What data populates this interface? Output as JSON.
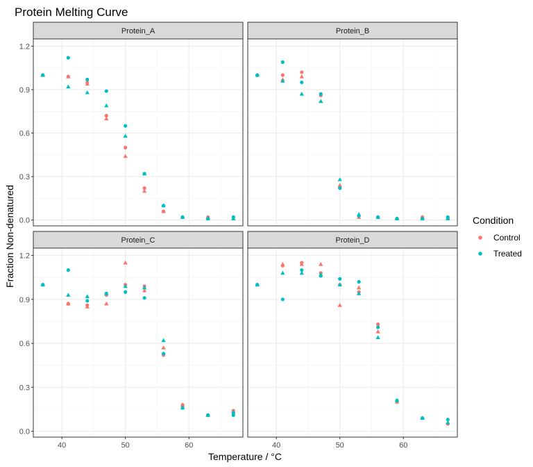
{
  "chart_data": {
    "type": "scatter",
    "title": "Protein Melting Curve",
    "xlabel": "Temperature / °C",
    "ylabel": "Fraction Non-denatured",
    "xlim": [
      35.5,
      68.5
    ],
    "ylim": [
      -0.04,
      1.25
    ],
    "x_ticks": [
      40,
      50,
      60
    ],
    "y_ticks": [
      0.0,
      0.3,
      0.6,
      0.9,
      1.2
    ],
    "y_tick_labels": [
      "0.0",
      "0.3",
      "0.6",
      "0.9",
      "1.2"
    ],
    "grid": true,
    "facet_by": "Protein",
    "legend": {
      "title": "Condition",
      "position": "right",
      "entries": [
        {
          "name": "Control",
          "color": "#F8766D"
        },
        {
          "name": "Treated",
          "color": "#00BFC4"
        }
      ]
    },
    "shapes": [
      "circle",
      "triangle"
    ],
    "panels": [
      {
        "name": "Protein_A",
        "series": [
          {
            "condition": "Control",
            "shape": "circle",
            "x": [
              37,
              41,
              44,
              47,
              50,
              53,
              56,
              59,
              63,
              67
            ],
            "y": [
              1.0,
              0.99,
              0.95,
              0.72,
              0.5,
              0.22,
              0.06,
              0.02,
              0.02,
              0.02
            ]
          },
          {
            "condition": "Control",
            "shape": "triangle",
            "x": [
              37,
              41,
              44,
              47,
              50,
              53,
              56,
              59,
              63,
              67
            ],
            "y": [
              1.0,
              0.99,
              0.94,
              0.7,
              0.44,
              0.2,
              0.06,
              0.02,
              0.02,
              0.01
            ]
          },
          {
            "condition": "Treated",
            "shape": "circle",
            "x": [
              37,
              41,
              44,
              47,
              50,
              53,
              56,
              59,
              63,
              67
            ],
            "y": [
              1.0,
              1.12,
              0.97,
              0.89,
              0.65,
              0.32,
              0.1,
              0.02,
              0.01,
              0.02
            ]
          },
          {
            "condition": "Treated",
            "shape": "triangle",
            "x": [
              37,
              41,
              44,
              47,
              50,
              53,
              56,
              59,
              63,
              67
            ],
            "y": [
              1.0,
              0.92,
              0.88,
              0.79,
              0.58,
              0.32,
              0.1,
              0.02,
              0.01,
              0.01
            ]
          }
        ]
      },
      {
        "name": "Protein_B",
        "series": [
          {
            "condition": "Control",
            "shape": "circle",
            "x": [
              37,
              41,
              44,
              47,
              50,
              53,
              56,
              59,
              63,
              67
            ],
            "y": [
              1.0,
              1.0,
              1.02,
              0.86,
              0.23,
              0.03,
              0.02,
              0.01,
              0.02,
              0.01
            ]
          },
          {
            "condition": "Control",
            "shape": "triangle",
            "x": [
              37,
              41,
              44,
              47,
              50,
              53,
              56,
              59,
              63,
              67
            ],
            "y": [
              1.0,
              0.97,
              0.99,
              0.82,
              0.24,
              0.02,
              0.02,
              0.01,
              0.02,
              0.01
            ]
          },
          {
            "condition": "Treated",
            "shape": "circle",
            "x": [
              37,
              41,
              44,
              47,
              50,
              53,
              56,
              59,
              63,
              67
            ],
            "y": [
              1.0,
              1.09,
              0.95,
              0.87,
              0.22,
              0.03,
              0.02,
              0.01,
              0.01,
              0.02
            ]
          },
          {
            "condition": "Treated",
            "shape": "triangle",
            "x": [
              37,
              41,
              44,
              47,
              50,
              53,
              56,
              59,
              63,
              67
            ],
            "y": [
              1.0,
              0.96,
              0.87,
              0.82,
              0.28,
              0.04,
              0.02,
              0.01,
              0.01,
              0.01
            ]
          }
        ]
      },
      {
        "name": "Protein_C",
        "series": [
          {
            "condition": "Control",
            "shape": "circle",
            "x": [
              37,
              41,
              44,
              47,
              50,
              53,
              56,
              59,
              63,
              67
            ],
            "y": [
              1.0,
              0.87,
              0.86,
              0.93,
              1.0,
              0.99,
              0.52,
              0.18,
              0.11,
              0.14
            ]
          },
          {
            "condition": "Control",
            "shape": "triangle",
            "x": [
              37,
              41,
              44,
              47,
              50,
              53,
              56,
              59,
              63,
              67
            ],
            "y": [
              1.0,
              0.87,
              0.85,
              0.87,
              1.15,
              0.96,
              0.57,
              0.18,
              0.11,
              0.14
            ]
          },
          {
            "condition": "Treated",
            "shape": "circle",
            "x": [
              37,
              41,
              44,
              47,
              50,
              53,
              56,
              59,
              63,
              67
            ],
            "y": [
              1.0,
              1.1,
              0.89,
              0.94,
              0.95,
              0.91,
              0.53,
              0.16,
              0.11,
              0.11
            ]
          },
          {
            "condition": "Treated",
            "shape": "triangle",
            "x": [
              37,
              41,
              44,
              47,
              50,
              53,
              56,
              59,
              63,
              67
            ],
            "y": [
              1.0,
              0.93,
              0.92,
              0.94,
              0.99,
              0.98,
              0.62,
              0.16,
              0.11,
              0.13
            ]
          }
        ]
      },
      {
        "name": "Protein_D",
        "series": [
          {
            "condition": "Control",
            "shape": "circle",
            "x": [
              37,
              41,
              44,
              47,
              50,
              53,
              56,
              59,
              63,
              67
            ],
            "y": [
              1.0,
              1.13,
              1.15,
              1.08,
              1.0,
              0.95,
              0.73,
              0.21,
              0.09,
              0.05
            ]
          },
          {
            "condition": "Control",
            "shape": "triangle",
            "x": [
              37,
              41,
              44,
              47,
              50,
              53,
              56,
              59,
              63,
              67
            ],
            "y": [
              1.0,
              1.14,
              1.14,
              1.14,
              0.86,
              0.98,
              0.68,
              0.2,
              0.09,
              0.06
            ]
          },
          {
            "condition": "Treated",
            "shape": "circle",
            "x": [
              37,
              41,
              44,
              47,
              50,
              53,
              56,
              59,
              63,
              67
            ],
            "y": [
              1.0,
              0.9,
              1.1,
              1.06,
              1.04,
              1.02,
              0.71,
              0.21,
              0.09,
              0.08
            ]
          },
          {
            "condition": "Treated",
            "shape": "triangle",
            "x": [
              37,
              41,
              44,
              47,
              50,
              53,
              56,
              59,
              63,
              67
            ],
            "y": [
              1.0,
              1.08,
              1.08,
              1.07,
              1.0,
              0.94,
              0.64,
              0.21,
              0.09,
              0.06
            ]
          }
        ]
      }
    ]
  }
}
